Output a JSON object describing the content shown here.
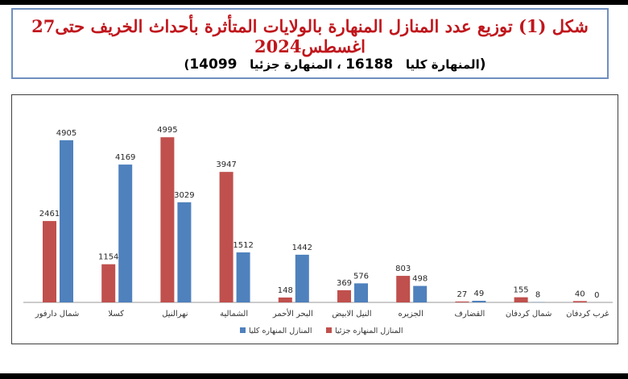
{
  "title": "شكل (1) توزيع عدد المنازل المنهارة بالولايات المتأثرة بأحداث الخريف حتى27 اغسطس2024",
  "subtitle": {
    "open": "(",
    "total_label": "المنهارة كليا",
    "total_value": "16188",
    "separator": "،",
    "partial_label": "المنهارة جزئيا",
    "partial_value": "14099",
    "close": ")"
  },
  "colors": {
    "title": "#c0161c",
    "partial": "#c0504d",
    "total": "#4f81bd"
  },
  "chart_data": {
    "type": "bar",
    "categories": [
      "شمال دارفور",
      "كسلا",
      "نهرالنيل",
      "الشمالية",
      "البحر الأحمر",
      "النيل الابيض",
      "الجزيره",
      "القضارف",
      "شمال كردفان",
      "غرب كردفان"
    ],
    "series": [
      {
        "name": "المنازل المنهاره جزئيا",
        "color": "#c0504d",
        "values": [
          2461,
          1154,
          4995,
          3947,
          148,
          369,
          803,
          27,
          155,
          40
        ]
      },
      {
        "name": "المنازل المنهاره كليا",
        "color": "#4f81bd",
        "values": [
          4905,
          4169,
          3029,
          1512,
          1442,
          576,
          498,
          49,
          8,
          0
        ]
      }
    ],
    "ylim": [
      0,
      5000
    ],
    "grid": false,
    "legend_position": "bottom"
  }
}
